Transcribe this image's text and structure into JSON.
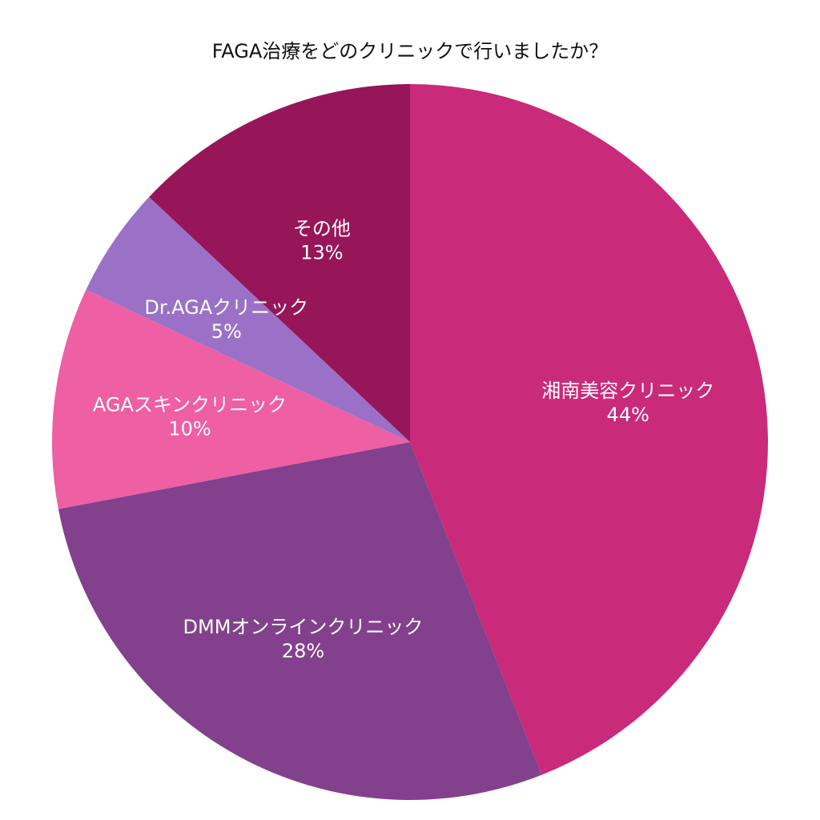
{
  "chart_data": {
    "type": "pie",
    "title": "FAGA治療をどのクリニックで行いましたか？",
    "slices": [
      {
        "label": "湘南美容クリニック",
        "value": 44,
        "value_label": "44%",
        "color": "#C92A79"
      },
      {
        "label": "DMMオンラインクリニック",
        "value": 28,
        "value_label": "28%",
        "color": "#83408D"
      },
      {
        "label": "AGAスキンクリニック",
        "value": 10,
        "value_label": "10%",
        "color": "#EE5FA3"
      },
      {
        "label": "Dr.AGAクリニック",
        "value": 5,
        "value_label": "5%",
        "color": "#9B71C7"
      },
      {
        "label": "その他",
        "value": 13,
        "value_label": "13%",
        "color": "#97165A"
      }
    ],
    "start_angle": "12 o'clock",
    "direction": "clockwise",
    "legend": "none"
  }
}
